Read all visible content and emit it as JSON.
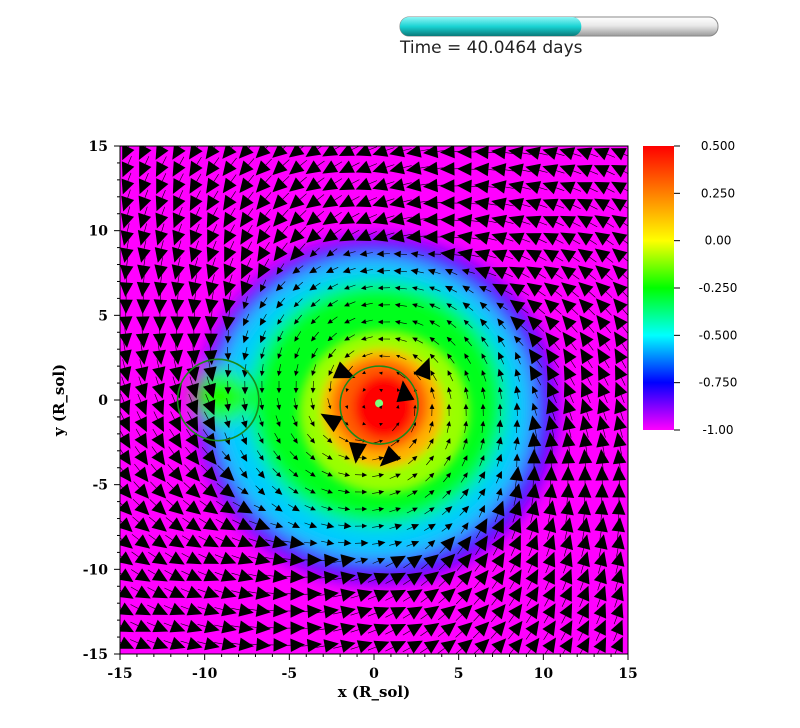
{
  "time_bar": {
    "label": "Time = 40.0464 days",
    "progress": 0.57,
    "fill_color": "#19d3d3",
    "track_color": "#e2e2e2"
  },
  "chart_data": {
    "type": "heatmap",
    "title": "",
    "xlabel": "x (R_sol)",
    "ylabel": "y (R_sol)",
    "xlim": [
      -15,
      15
    ],
    "ylim": [
      -15,
      15
    ],
    "x_ticks": [
      -15,
      -10,
      -5,
      0,
      5,
      10,
      15
    ],
    "y_ticks": [
      -15,
      -10,
      -5,
      0,
      5,
      10,
      15
    ],
    "colorbar": {
      "range": [
        -1.0,
        0.5
      ],
      "ticks": [
        "0.500",
        "0.250",
        "0.00",
        "-0.250",
        "-0.500",
        "-0.750",
        "-1.00"
      ],
      "colormap": [
        "#ff0000",
        "#ff8000",
        "#ffff00",
        "#00ff00",
        "#00ffff",
        "#0000ff",
        "#ff00ff"
      ]
    },
    "field": {
      "core_value": 0.5,
      "halo_value": -0.6,
      "background_value": -1.0
    },
    "circles": [
      {
        "name": "companion",
        "cx": -9.2,
        "cy": 0.0,
        "r": 2.4,
        "color": "#1a8a1a"
      },
      {
        "name": "primary",
        "cx": 0.3,
        "cy": -0.3,
        "r": 2.3,
        "color": "#1a8a1a"
      }
    ],
    "vectors": "velocity arrows, black, swirling counter-clockwise"
  }
}
